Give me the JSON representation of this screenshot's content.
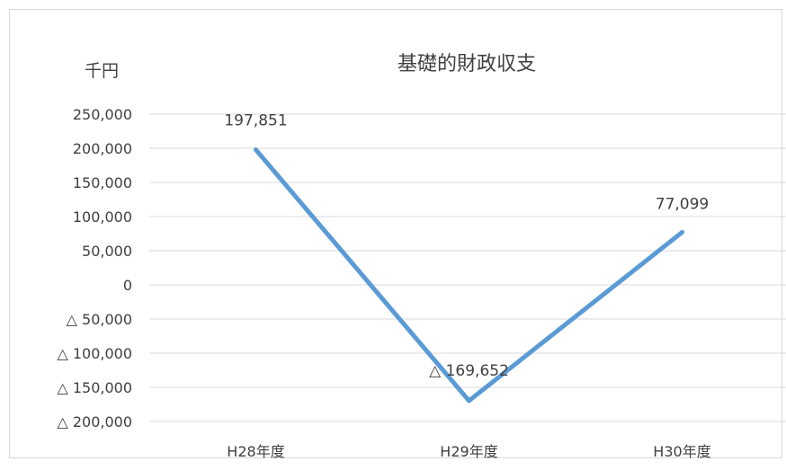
{
  "chart_data": {
    "type": "line",
    "title": "基礎的財政収支",
    "unit_label": "千円",
    "categories": [
      "H28年度",
      "H29年度",
      "H30年度"
    ],
    "series": [
      {
        "values": [
          197851,
          -169652,
          77099
        ]
      }
    ],
    "data_labels": [
      "197,851",
      "△ 169,652",
      "77,099"
    ],
    "y_ticks": [
      250000,
      200000,
      150000,
      100000,
      50000,
      0,
      -50000,
      -100000,
      -150000,
      -200000
    ],
    "y_tick_labels": [
      "250,000",
      "200,000",
      "150,000",
      "100,000",
      "50,000",
      "0",
      "△ 50,000",
      "△ 100,000",
      "△ 150,000",
      "△ 200,000"
    ],
    "ylim": [
      -200000,
      250000
    ],
    "grid": true,
    "legend": "none",
    "line_color": "#5b9bd5"
  }
}
